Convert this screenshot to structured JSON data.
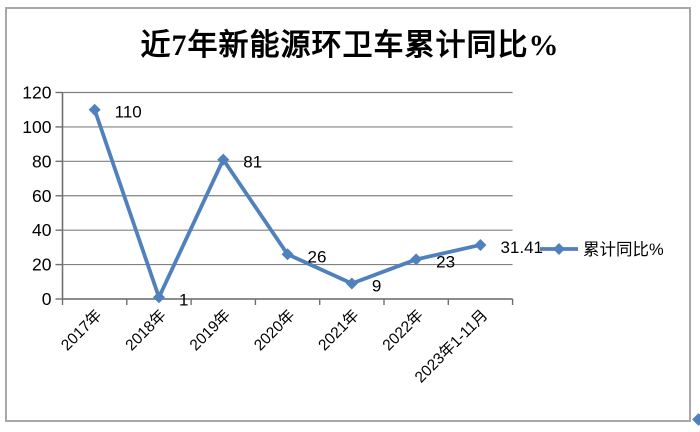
{
  "chart_data": {
    "type": "line",
    "title": "近7年新能源环卫车累计同比%",
    "categories": [
      "2017年",
      "2018年",
      "2019年",
      "2020年",
      "2021年",
      "2022年",
      "2023年1-11月"
    ],
    "series": [
      {
        "name": "累计同比%",
        "values": [
          110,
          1,
          81,
          26,
          9,
          23,
          31.41
        ]
      }
    ],
    "data_labels": [
      "110",
      "1",
      "81",
      "26",
      "9",
      "23",
      "31.41"
    ],
    "xlabel": "",
    "ylabel": "",
    "ylim": [
      0,
      120
    ],
    "yticks": [
      0,
      20,
      40,
      60,
      80,
      100,
      120
    ],
    "grid": true,
    "legend_position": "right",
    "legend_label": "累计同比%",
    "marker": "diamond",
    "colors": {
      "series": "#4F81BD",
      "gridline": "#808080",
      "axis": "#707070",
      "text": "#000000",
      "frame_border": "#A8A8A8"
    }
  }
}
